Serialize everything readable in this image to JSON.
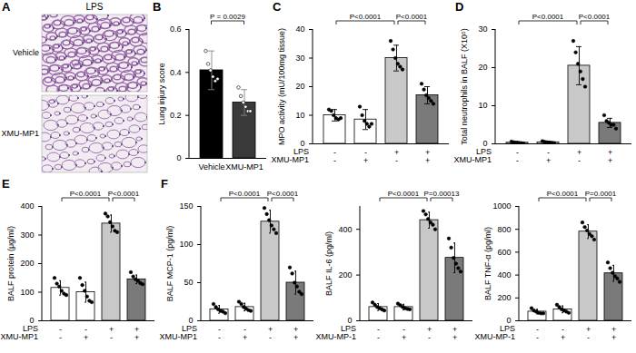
{
  "chart_data": [
    {
      "panel": "A",
      "type": "image",
      "title": "LPS",
      "categories": [
        "Vehicle",
        "XMU-MP1"
      ]
    },
    {
      "panel": "B",
      "type": "bar",
      "ylabel": "Lung injury score",
      "categories": [
        "Vehicle",
        "XMU-MP1"
      ],
      "values": [
        0.41,
        0.26
      ],
      "sd": [
        0.09,
        0.06
      ],
      "points": [
        [
          0.5,
          0.44,
          0.41,
          0.38,
          0.36,
          0.37
        ],
        [
          0.33,
          0.29,
          0.26,
          0.24,
          0.22,
          0.22
        ]
      ],
      "colors": [
        "#000000",
        "#3a3a3a"
      ],
      "marker": "circle",
      "ylim": [
        0,
        0.6
      ],
      "yticks": [
        0,
        0.2,
        0.4,
        0.6
      ],
      "comparisons": [
        {
          "groups": [
            0,
            1
          ],
          "label": "P = 0.0029"
        }
      ]
    },
    {
      "panel": "C",
      "type": "bar",
      "ylabel": "MPO activity (mU/100mg tissue)",
      "factors": [
        {
          "label": "LPS",
          "levels": [
            "-",
            "-",
            "+",
            "+"
          ]
        },
        {
          "label": "XMU-MP1",
          "levels": [
            "-",
            "+",
            "-",
            "+"
          ]
        }
      ],
      "values": [
        10,
        8.5,
        30,
        17
      ],
      "sd": [
        2,
        3.5,
        4.5,
        3
      ],
      "points": [
        [
          12,
          11.5,
          10,
          9,
          8.5,
          9
        ],
        [
          13,
          10,
          8,
          7,
          6,
          7
        ],
        [
          36,
          33,
          30,
          28,
          27,
          26
        ],
        [
          21,
          19,
          17,
          16,
          15,
          14
        ]
      ],
      "colors": [
        "#ffffff",
        "#ffffff",
        "#c8c8c8",
        "#7a7a7a"
      ],
      "marker": "circle",
      "ylim": [
        0,
        40
      ],
      "yticks": [
        0,
        10,
        20,
        30,
        40
      ],
      "comparisons": [
        {
          "groups": [
            0,
            2
          ],
          "label": "P<0.0001"
        },
        {
          "groups": [
            2,
            3
          ],
          "label": "P<0.0001"
        }
      ]
    },
    {
      "panel": "D",
      "type": "bar",
      "ylabel": "Total neutrophils in BALF (X10⁵)",
      "factors": [
        {
          "label": "LPS",
          "levels": [
            "-",
            "-",
            "+",
            "+"
          ]
        },
        {
          "label": "XMU-MP1",
          "levels": [
            "-",
            "+",
            "-",
            "+"
          ]
        }
      ],
      "values": [
        0.3,
        0.4,
        20.5,
        5.5
      ],
      "sd": [
        0.3,
        0.3,
        5,
        1.2
      ],
      "points": [
        [
          0.6,
          0.4,
          0.3,
          0.2,
          0.2,
          0.1
        ],
        [
          0.7,
          0.5,
          0.4,
          0.3,
          0.3,
          0.2
        ],
        [
          27,
          24,
          21,
          19,
          17,
          15
        ],
        [
          7.5,
          6,
          5.5,
          5,
          5,
          4
        ]
      ],
      "colors": [
        "#ffffff",
        "#ffffff",
        "#c8c8c8",
        "#7a7a7a"
      ],
      "marker": "circle",
      "ylim": [
        0,
        30
      ],
      "yticks": [
        0,
        10,
        20,
        30
      ],
      "comparisons": [
        {
          "groups": [
            0,
            2
          ],
          "label": "P<0.0001"
        },
        {
          "groups": [
            2,
            3
          ],
          "label": "P<0.0001"
        }
      ]
    },
    {
      "panel": "E",
      "type": "bar",
      "ylabel": "BALF protein (μg/ml)",
      "factors": [
        {
          "label": "LPS",
          "levels": [
            "-",
            "-",
            "+",
            "+"
          ]
        },
        {
          "label": "XMU-MP1",
          "levels": [
            "-",
            "+",
            "-",
            "+"
          ]
        }
      ],
      "values": [
        115,
        100,
        340,
        145
      ],
      "sd": [
        25,
        35,
        30,
        15
      ],
      "points": [
        [
          150,
          130,
          120,
          105,
          95,
          90
        ],
        [
          150,
          125,
          105,
          85,
          70,
          65
        ],
        [
          375,
          365,
          345,
          330,
          315,
          310
        ],
        [
          170,
          155,
          145,
          140,
          132,
          128
        ]
      ],
      "colors": [
        "#ffffff",
        "#ffffff",
        "#c8c8c8",
        "#7a7a7a"
      ],
      "marker": "circle",
      "ylim": [
        0,
        400
      ],
      "yticks": [
        0,
        100,
        200,
        300,
        400
      ],
      "comparisons": [
        {
          "groups": [
            0,
            2
          ],
          "label": "P<0.0001"
        },
        {
          "groups": [
            2,
            3
          ],
          "label": "P<0.0001"
        }
      ]
    },
    {
      "panel": "F",
      "type": "bar",
      "ylabel": "BALF MCP-1 (pg/ml)",
      "factors": [
        {
          "label": "LPS",
          "levels": [
            "-",
            "-",
            "+",
            "+"
          ]
        },
        {
          "label": "XMU-MP1",
          "levels": [
            "-",
            "+",
            "-",
            "+"
          ]
        }
      ],
      "values": [
        15,
        18,
        130,
        50
      ],
      "sd": [
        5,
        5,
        15,
        15
      ],
      "points": [
        [
          22,
          18,
          15,
          13,
          12,
          10
        ],
        [
          25,
          22,
          18,
          16,
          14,
          13
        ],
        [
          148,
          140,
          132,
          125,
          120,
          115
        ],
        [
          70,
          62,
          50,
          45,
          38,
          35
        ]
      ],
      "colors": [
        "#ffffff",
        "#ffffff",
        "#c8c8c8",
        "#7a7a7a"
      ],
      "marker": "circle",
      "ylim": [
        0,
        150
      ],
      "yticks": [
        0,
        50,
        100,
        150
      ],
      "comparisons": [
        {
          "groups": [
            0,
            2
          ],
          "label": "P<0.0001"
        },
        {
          "groups": [
            2,
            3
          ],
          "label": "P<0.0001"
        }
      ]
    },
    {
      "panel": "F",
      "type": "bar",
      "ylabel": "BALF IL-6 (pg/ml)",
      "factors": [
        {
          "label": "LPS",
          "levels": [
            "-",
            "-",
            "+",
            "+"
          ]
        },
        {
          "label": "XMU-MP-1",
          "levels": [
            "-",
            "+",
            "-",
            "+"
          ]
        }
      ],
      "values": [
        60,
        60,
        440,
        275
      ],
      "sd": [
        15,
        12,
        35,
        65
      ],
      "points": [
        [
          80,
          70,
          60,
          55,
          50,
          45
        ],
        [
          75,
          68,
          60,
          55,
          52,
          50
        ],
        [
          480,
          465,
          445,
          430,
          420,
          400
        ],
        [
          360,
          320,
          275,
          250,
          230,
          215
        ]
      ],
      "colors": [
        "#ffffff",
        "#ffffff",
        "#c8c8c8",
        "#7a7a7a"
      ],
      "marker": "circle",
      "ylim": [
        0,
        500
      ],
      "yticks": [
        0,
        200,
        400
      ],
      "comparisons": [
        {
          "groups": [
            0,
            2
          ],
          "label": "P<0.0001"
        },
        {
          "groups": [
            2,
            3
          ],
          "label": "P=0.00013"
        }
      ]
    },
    {
      "panel": "F",
      "type": "bar",
      "ylabel": "BALF TNF-α (pg/ml)",
      "factors": [
        {
          "label": "LPS",
          "levels": [
            "-",
            "-",
            "+",
            "+"
          ]
        },
        {
          "label": "XMU-MP-1",
          "levels": [
            "-",
            "+",
            "-",
            "+"
          ]
        }
      ],
      "values": [
        80,
        100,
        780,
        415
      ],
      "sd": [
        20,
        30,
        60,
        70
      ],
      "points": [
        [
          110,
          90,
          80,
          70,
          65,
          65
        ],
        [
          140,
          120,
          100,
          90,
          80,
          70
        ],
        [
          860,
          820,
          790,
          760,
          740,
          710
        ],
        [
          510,
          460,
          420,
          390,
          370,
          340
        ]
      ],
      "colors": [
        "#ffffff",
        "#ffffff",
        "#c8c8c8",
        "#7a7a7a"
      ],
      "marker": "circle",
      "ylim": [
        0,
        1000
      ],
      "yticks": [
        0,
        200,
        400,
        600,
        800,
        1000
      ],
      "comparisons": [
        {
          "groups": [
            0,
            2
          ],
          "label": "P<0.0001"
        },
        {
          "groups": [
            2,
            3
          ],
          "label": "P=0.0001"
        }
      ]
    }
  ]
}
